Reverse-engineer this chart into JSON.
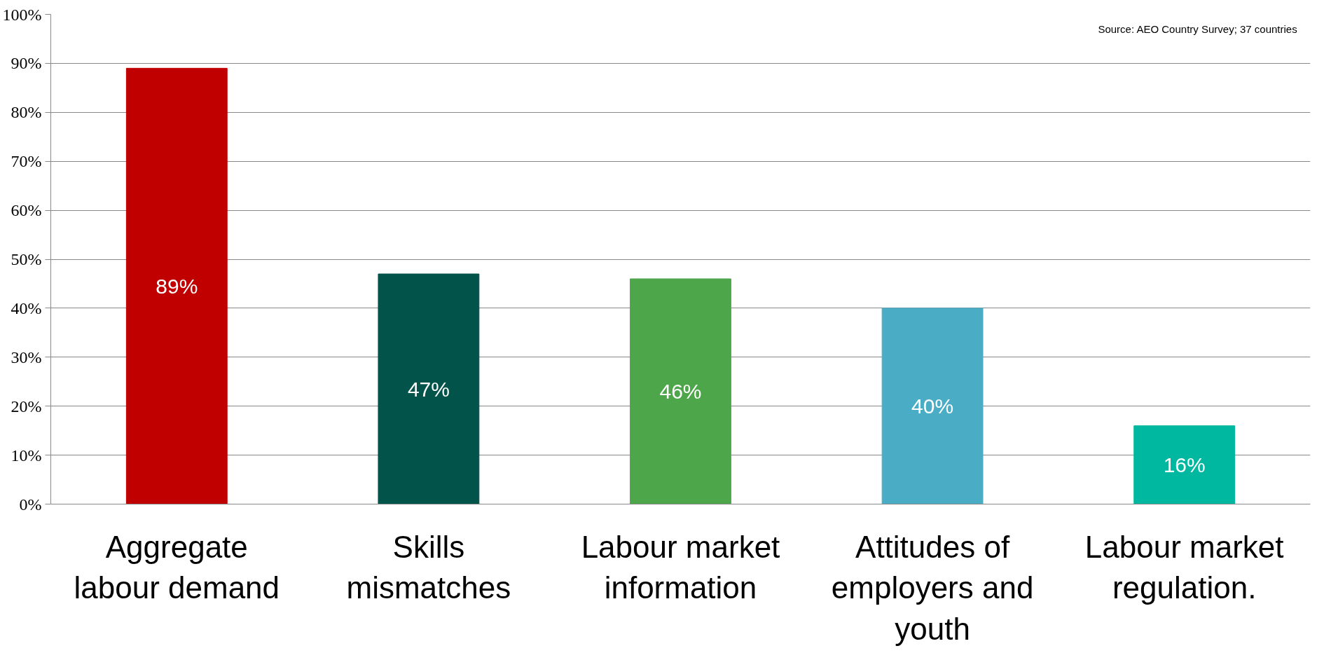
{
  "chart_data": {
    "type": "bar",
    "categories": [
      "Aggregate labour demand",
      "Skills mismatches",
      "Labour market information",
      "Attitudes of employers and youth",
      "Labour market regulation."
    ],
    "values": [
      89,
      47,
      46,
      40,
      16
    ],
    "colors": [
      "#c00000",
      "#02544a",
      "#4ea64a",
      "#4bacc6",
      "#00b8a0"
    ],
    "value_labels": [
      "89%",
      "47%",
      "46%",
      "40%",
      "16%"
    ],
    "ylim": [
      0,
      100
    ],
    "yticks": [
      {
        "value": 0,
        "label": "0%"
      },
      {
        "value": 10,
        "label": "10%"
      },
      {
        "value": 20,
        "label": "20%"
      },
      {
        "value": 30,
        "label": "30%"
      },
      {
        "value": 40,
        "label": "40%"
      },
      {
        "value": 50,
        "label": "50%"
      },
      {
        "value": 60,
        "label": "60%"
      },
      {
        "value": 70,
        "label": "70%"
      },
      {
        "value": 80,
        "label": "80%"
      },
      {
        "value": 90,
        "label": "90%"
      },
      {
        "value": 100,
        "label": "100%"
      }
    ],
    "grid": "y",
    "annotations": [
      "Source: AEO Country Survey; 37 countries"
    ]
  }
}
